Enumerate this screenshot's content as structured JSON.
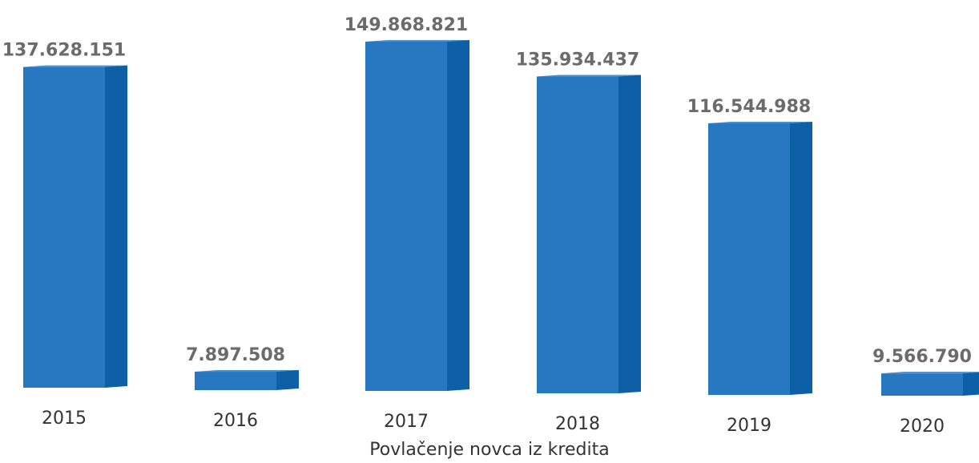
{
  "chart_data": {
    "type": "bar",
    "categories": [
      "2015",
      "2016",
      "2017",
      "2018",
      "2019",
      "2020"
    ],
    "values": [
      137628151,
      7897508,
      149868821,
      135934437,
      116544988,
      9566790
    ],
    "value_labels": [
      "137.628.151",
      "7.897.508",
      "149.868.821",
      "135.934.437",
      "116.544.988",
      "9.566.790"
    ],
    "title": "",
    "xlabel": "Povlačenje novca iz kredita",
    "ylabel": "",
    "ylim": [
      0,
      149868821
    ],
    "grid": false,
    "legend": "none",
    "colors": {
      "bar_front": "#2778c1",
      "bar_side": "#0d5fa6",
      "bar_top": "#4a8fce",
      "value_label": "#6b6b6b",
      "tick_label": "#333333"
    }
  }
}
